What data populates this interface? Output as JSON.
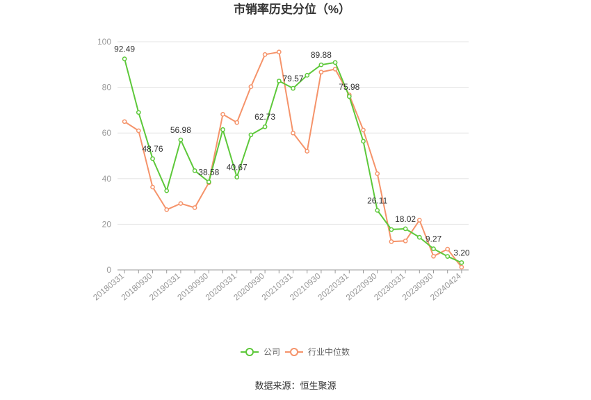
{
  "chart_data": {
    "type": "line",
    "title": "市销率历史分位（%）",
    "ylim": [
      0,
      100
    ],
    "yticks": [
      0,
      20,
      40,
      60,
      80,
      100
    ],
    "x": [
      "20180331",
      "20180630",
      "20180930",
      "20181231",
      "20190331",
      "20190630",
      "20190930",
      "20191231",
      "20200331",
      "20200630",
      "20200930",
      "20201231",
      "20210331",
      "20210630",
      "20210930",
      "20211231",
      "20220331",
      "20220630",
      "20220930",
      "20221231",
      "20230331",
      "20230630",
      "20230930",
      "20231231",
      "20240424"
    ],
    "xtick_labels": [
      "20180331",
      "20180930",
      "20190331",
      "20190930",
      "20200331",
      "20200930",
      "20210331",
      "20210930",
      "20220331",
      "20220930",
      "20230331",
      "20230930",
      "20240424"
    ],
    "grid": true,
    "legend": "bottom-center",
    "series": [
      {
        "name": "公司",
        "color": "#5dc83a",
        "values": [
          92.49,
          69.0,
          48.76,
          34.7,
          56.98,
          43.5,
          38.58,
          61.5,
          40.67,
          59.2,
          62.73,
          82.8,
          79.57,
          85.3,
          89.88,
          90.9,
          75.98,
          56.4,
          26.11,
          17.7,
          18.02,
          14.3,
          9.27,
          5.9,
          3.2
        ],
        "labels": {
          "0": "92.49",
          "2": "48.76",
          "4": "56.98",
          "6": "38.58",
          "8": "40.67",
          "10": "62.73",
          "12": "79.57",
          "14": "89.88",
          "16": "75.98",
          "18": "26.11",
          "20": "18.02",
          "22": "9.27",
          "24": "3.20"
        }
      },
      {
        "name": "行业中位数",
        "color": "#f5936a",
        "values": [
          65.0,
          61.0,
          36.3,
          26.4,
          29.1,
          27.3,
          38.2,
          68.2,
          64.6,
          80.3,
          94.4,
          95.5,
          60.0,
          52.0,
          86.7,
          88.0,
          76.7,
          61.3,
          42.2,
          12.4,
          12.7,
          21.8,
          6.0,
          9.1,
          1.2
        ]
      }
    ],
    "source": "数据来源：恒生聚源"
  }
}
